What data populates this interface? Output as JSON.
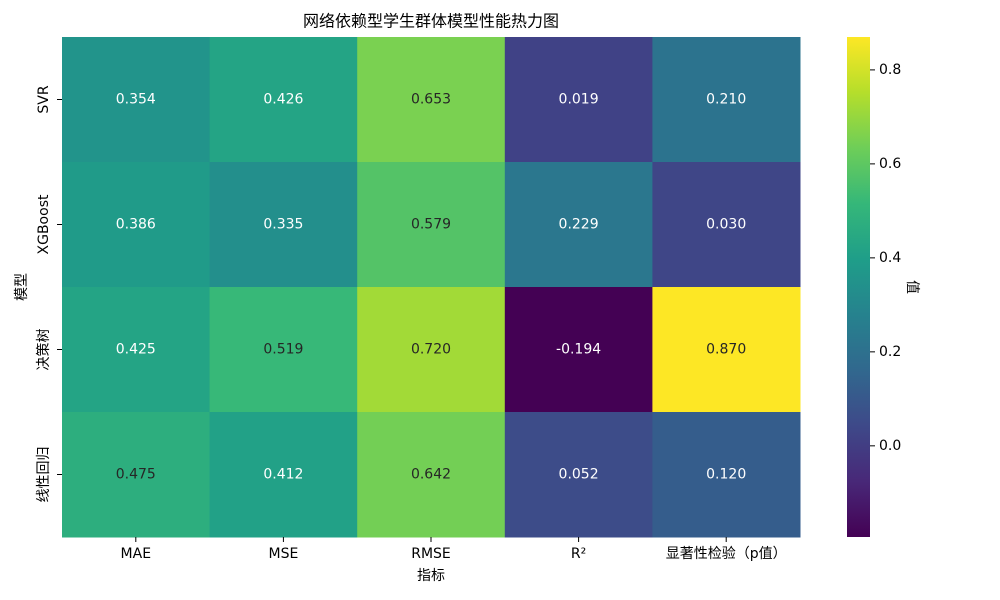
{
  "chart_data": {
    "type": "heatmap",
    "title": "网络依赖型学生群体模型性能热力图",
    "x_label": "指标",
    "y_label": "模型",
    "x_categories": [
      "MAE",
      "MSE",
      "RMSE",
      "R²",
      "显著性检验（p值）"
    ],
    "y_categories": [
      "SVR",
      "XGBoost",
      "决策树",
      "线性回归"
    ],
    "values": [
      [
        0.354,
        0.426,
        0.653,
        0.019,
        0.21
      ],
      [
        0.386,
        0.335,
        0.579,
        0.229,
        0.03
      ],
      [
        0.425,
        0.519,
        0.72,
        -0.194,
        0.87
      ],
      [
        0.475,
        0.412,
        0.642,
        0.052,
        0.12
      ]
    ],
    "value_labels": [
      [
        "0.354",
        "0.426",
        "0.653",
        "0.019",
        "0.210"
      ],
      [
        "0.386",
        "0.335",
        "0.579",
        "0.229",
        "0.030"
      ],
      [
        "0.425",
        "0.519",
        "0.720",
        "-0.194",
        "0.870"
      ],
      [
        "0.475",
        "0.412",
        "0.642",
        "0.052",
        "0.120"
      ]
    ],
    "colormap": "viridis",
    "colorbar_label": "值",
    "clim": [
      -0.194,
      0.87
    ],
    "cticks": [
      {
        "value": 0,
        "label": "0.0"
      },
      0.2,
      0.4,
      0.6,
      0.8
    ]
  }
}
